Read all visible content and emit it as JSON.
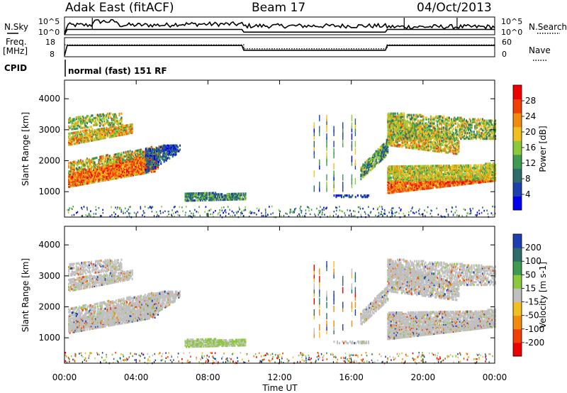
{
  "header": {
    "station": "Adak East (fitACF)",
    "beam": "Beam 17",
    "date": "04/Oct/2013"
  },
  "left_labels": {
    "nsky": "N.Sky",
    "freq_line1": "Freq.",
    "freq_line2": "[MHz]",
    "cpid": "CPID"
  },
  "right_labels": {
    "nsearch": "N.Search",
    "nave": "Nave"
  },
  "cpid_text": "normal (fast) 151 RF",
  "colors": {
    "power": [
      "#0000ee",
      "#1f3fb0",
      "#2e6b6b",
      "#3f9a4f",
      "#8cc83c",
      "#f0c020",
      "#f08a10",
      "#f04008",
      "#ee0000"
    ],
    "velocity": [
      "#ee0000",
      "#f04008",
      "#f08a10",
      "#f0c020",
      "#c0c0c0",
      "#8cc83c",
      "#3f9a4f",
      "#2e6b6b",
      "#1f3fb0"
    ]
  },
  "chart_data": [
    {
      "type": "line",
      "name": "noise",
      "series": [
        {
          "name": "N.Sky",
          "x": [
            0,
            0.15,
            1.5,
            1.55,
            3,
            5,
            6,
            9.9,
            10,
            12,
            14,
            16,
            17.9,
            18,
            20,
            22,
            24
          ],
          "y": [
            0.6,
            0.55,
            0.55,
            0.75,
            0.55,
            0.55,
            0.6,
            0.6,
            0.5,
            0.5,
            0.5,
            0.5,
            0.5,
            0.45,
            0.45,
            0.45,
            0.45
          ]
        },
        {
          "name": "N.Search",
          "x": [
            0,
            0.15,
            9.9,
            10,
            17.9,
            18,
            24
          ],
          "y": [
            0.0,
            0.3,
            0.3,
            0.15,
            0.15,
            0.3,
            0.3
          ]
        }
      ],
      "yticks": [
        "10^5",
        "10^0"
      ],
      "yticks_right": [
        "10^5",
        "10^0"
      ]
    },
    {
      "type": "line",
      "name": "frequency",
      "series": [
        {
          "name": "Freq.",
          "x": [
            0,
            0.15,
            9.9,
            10,
            17.9,
            18,
            24
          ],
          "y": [
            8,
            14.5,
            14.5,
            11.5,
            11.5,
            14.5,
            14.5
          ]
        },
        {
          "name": "Nave",
          "x": [
            0,
            10,
            10,
            18,
            18,
            24
          ],
          "y": [
            0.62,
            0.62,
            0.42,
            0.42,
            0.62,
            0.62
          ]
        }
      ],
      "yticks": [
        "18",
        "8"
      ],
      "yticks_right": [
        "60",
        "0"
      ]
    },
    {
      "type": "heatmap",
      "name": "power",
      "ylabel": "Slant Range [km]",
      "ylim": [
        180,
        4600
      ],
      "yticks": [
        1000,
        2000,
        3000,
        4000
      ],
      "colorbar": {
        "label": "Power [dB]",
        "ticks": [
          4,
          8,
          12,
          16,
          20,
          24,
          28
        ],
        "range": [
          0,
          32
        ]
      }
    },
    {
      "type": "heatmap",
      "name": "velocity",
      "ylabel": "Slant Range [km]",
      "xlabel": "Time UT",
      "ylim": [
        180,
        4600
      ],
      "yticks": [
        1000,
        2000,
        3000,
        4000
      ],
      "xticks": [
        "00:00",
        "04:00",
        "08:00",
        "12:00",
        "16:00",
        "20:00",
        "00:00"
      ],
      "xlim": [
        0,
        24
      ],
      "colorbar": {
        "label": "Velocity [m s-1]",
        "ticks": [
          "200",
          "100",
          "50",
          "15",
          "-15",
          "-50",
          "-100",
          "-200"
        ]
      }
    }
  ]
}
